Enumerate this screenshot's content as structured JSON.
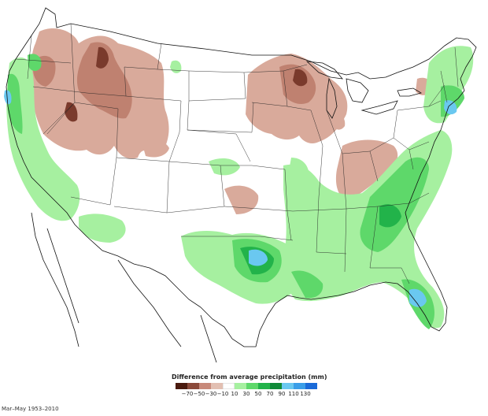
{
  "legend": {
    "title": "Difference from average precipitation (mm)",
    "ticks": [
      "−70",
      "−50",
      "−30",
      "−10",
      "10",
      "30",
      "50",
      "70",
      "90",
      "110",
      "130"
    ],
    "colors": [
      "#4a1a0e",
      "#8b4a3a",
      "#c8897a",
      "#e2bfb2",
      "#ffffff",
      "#a6f0a0",
      "#5ed86a",
      "#22b34a",
      "#0f8a38",
      "#6ac8f0",
      "#3a9ee8",
      "#1a6ad8"
    ]
  },
  "footnote": "Mar–May 1953–2010",
  "palette": {
    "dry_light": "#d9aa9b",
    "dry_mid": "#bf8170",
    "dry_dark": "#7a3a2c",
    "dry_darkest": "#4a1a0e",
    "wet_light": "#a6f0a0",
    "wet_mid": "#5ed86a",
    "wet_dark": "#22b34a",
    "wet_darkest": "#0f8a38",
    "wet_blue": "#6ac8f0",
    "outline": "#111111"
  }
}
